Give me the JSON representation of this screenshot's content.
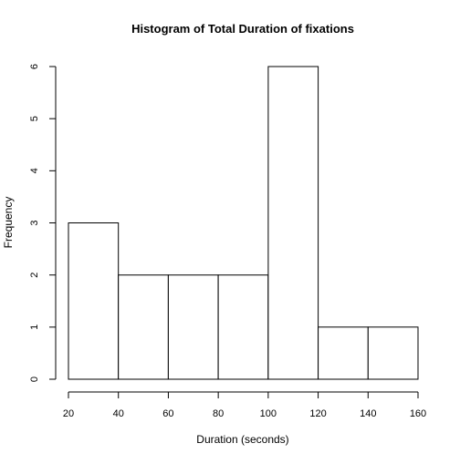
{
  "chart_data": {
    "type": "bar",
    "title": "Histogram of Total Duration of fixations",
    "xlabel": "Duration (seconds)",
    "ylabel": "Frequency",
    "bins": [
      {
        "from": 20,
        "to": 40,
        "count": 3
      },
      {
        "from": 40,
        "to": 60,
        "count": 2
      },
      {
        "from": 60,
        "to": 80,
        "count": 2
      },
      {
        "from": 80,
        "to": 100,
        "count": 2
      },
      {
        "from": 100,
        "to": 120,
        "count": 6
      },
      {
        "from": 120,
        "to": 140,
        "count": 1
      },
      {
        "from": 140,
        "to": 160,
        "count": 1
      }
    ],
    "x_ticks": [
      20,
      40,
      60,
      80,
      100,
      120,
      140,
      160
    ],
    "y_ticks": [
      0,
      1,
      2,
      3,
      4,
      5,
      6
    ],
    "xlim": [
      20,
      160
    ],
    "ylim": [
      0,
      6
    ],
    "grid": false,
    "bar_fill": "#ffffff",
    "bar_stroke": "#000000"
  }
}
